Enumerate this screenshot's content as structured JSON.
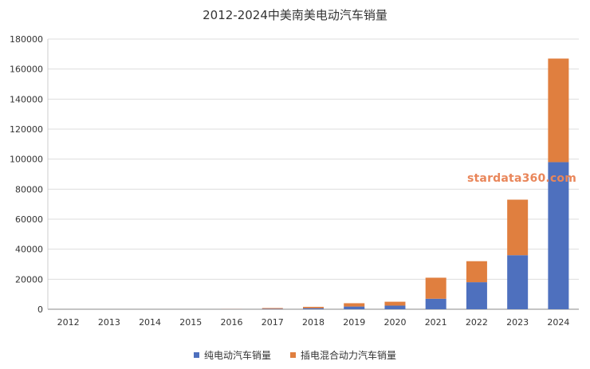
{
  "chart_data": {
    "type": "bar",
    "stacked": true,
    "title": "2012-2024中美南美电动汽车销量",
    "categories": [
      "2012",
      "2013",
      "2014",
      "2015",
      "2016",
      "2017",
      "2018",
      "2019",
      "2020",
      "2021",
      "2022",
      "2023",
      "2024"
    ],
    "series": [
      {
        "name": "纯电动汽车销量",
        "color": "#4e70be",
        "values": [
          0,
          0,
          0,
          0,
          100,
          300,
          700,
          1800,
          2400,
          7000,
          18000,
          36000,
          98000
        ]
      },
      {
        "name": "插电混合动力汽车销量",
        "color": "#e07f3f",
        "values": [
          0,
          0,
          0,
          0,
          100,
          500,
          900,
          2200,
          2600,
          14000,
          14000,
          37000,
          69000
        ]
      }
    ],
    "ylim": [
      0,
      180000
    ],
    "yticks": [
      "0",
      "20000",
      "40000",
      "60000",
      "80000",
      "100000",
      "120000",
      "140000",
      "160000",
      "180000"
    ],
    "grid": true,
    "legend_position": "bottom"
  },
  "watermark": "stardata360.com"
}
